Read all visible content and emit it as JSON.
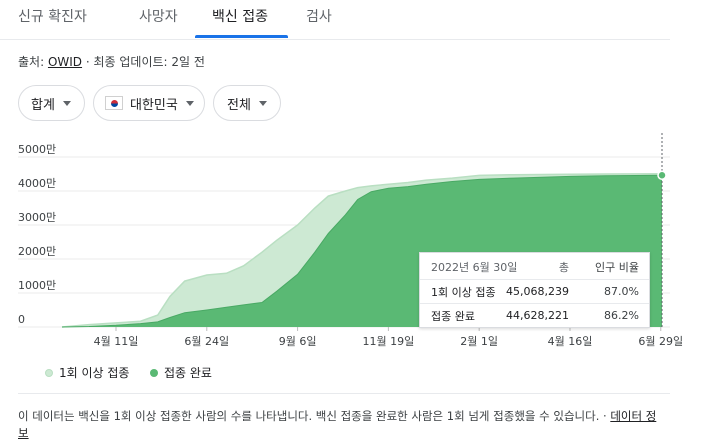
{
  "tabs": [
    {
      "label": "신규 확진자"
    },
    {
      "label": "사망자"
    },
    {
      "label": "백신 접종"
    },
    {
      "label": "검사"
    }
  ],
  "source": {
    "prefix": "출처: ",
    "name": "OWID",
    "updated": " · 최종 업데이트: 2일 전"
  },
  "filters": {
    "type": "합계",
    "country": "대한민국",
    "range": "전체"
  },
  "tooltip": {
    "date": "2022년 6월 30일",
    "col_total": "총",
    "col_pct": "인구 비율",
    "row1_label": "1회 이상 접종",
    "row1_total": "45,068,239",
    "row1_pct": "87.0%",
    "row2_label": "접종 완료",
    "row2_total": "44,628,221",
    "row2_pct": "86.2%"
  },
  "legend": {
    "first": "1회 이상 접종",
    "full": "접종 완료"
  },
  "note": {
    "text": "이 데이터는 백신을 1회 이상 접종한 사람의 수를 나타냅니다. 백신 접종을 완료한 사람은 1회 넘게 접종했을 수 있습니다.",
    "separator": " · ",
    "link": "데이터 정보"
  },
  "colors": {
    "first_dose": "#cde9d3",
    "full": "#5ab974",
    "full_line": "#49a964",
    "first_line": "#b9dfc2",
    "accent": "#1a73e8"
  },
  "chart_data": {
    "type": "area",
    "y_ticks": [
      "0",
      "1000만",
      "2000만",
      "3000만",
      "4000만",
      "5000만"
    ],
    "ylim": [
      0,
      50000000
    ],
    "x_ticks": [
      "4월 11일",
      "6월 24일",
      "9월 6일",
      "11월 19일",
      "2월 1일",
      "4월 16일",
      "6월 29일"
    ],
    "x": [
      "2021-02-26",
      "2021-03-20",
      "2021-04-11",
      "2021-05-01",
      "2021-05-15",
      "2021-05-25",
      "2021-06-06",
      "2021-06-24",
      "2021-07-10",
      "2021-07-24",
      "2021-08-08",
      "2021-08-20",
      "2021-09-06",
      "2021-09-20",
      "2021-10-01",
      "2021-10-15",
      "2021-10-25",
      "2021-11-05",
      "2021-11-19",
      "2021-12-05",
      "2021-12-20",
      "2022-01-10",
      "2022-02-01",
      "2022-03-01",
      "2022-04-16",
      "2022-05-15",
      "2022-06-30"
    ],
    "series": [
      {
        "name": "1회 이상 접종",
        "values": [
          0,
          700000,
          1200000,
          1700000,
          3500000,
          9000000,
          13500000,
          15300000,
          15800000,
          18000000,
          22000000,
          25500000,
          30000000,
          35000000,
          38500000,
          40000000,
          41000000,
          41500000,
          42000000,
          42500000,
          43200000,
          43800000,
          44600000,
          44800000,
          44900000,
          45000000,
          45068239
        ]
      },
      {
        "name": "접종 완료",
        "values": [
          0,
          150000,
          500000,
          1000000,
          1500000,
          2800000,
          4200000,
          5000000,
          5800000,
          6500000,
          7200000,
          10500000,
          15500000,
          22000000,
          27500000,
          33000000,
          37500000,
          39800000,
          40800000,
          41300000,
          42000000,
          42800000,
          43400000,
          43800000,
          44300000,
          44500000,
          44628221
        ]
      }
    ]
  }
}
